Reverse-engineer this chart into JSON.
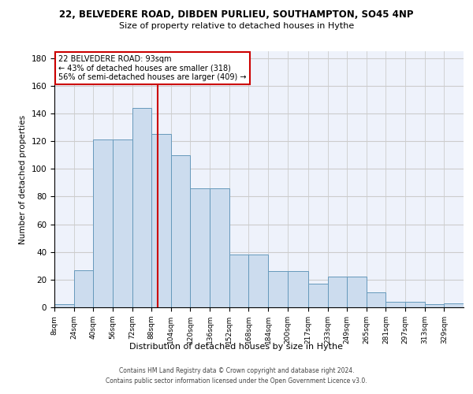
{
  "title1": "22, BELVEDERE ROAD, DIBDEN PURLIEU, SOUTHAMPTON, SO45 4NP",
  "title2": "Size of property relative to detached houses in Hythe",
  "xlabel": "Distribution of detached houses by size in Hythe",
  "ylabel": "Number of detached properties",
  "footer1": "Contains HM Land Registry data © Crown copyright and database right 2024.",
  "footer2": "Contains public sector information licensed under the Open Government Licence v3.0.",
  "annotation_line1": "22 BELVEDERE ROAD: 93sqm",
  "annotation_line2": "← 43% of detached houses are smaller (318)",
  "annotation_line3": "56% of semi-detached houses are larger (409) →",
  "property_size": 93,
  "bar_color": "#ccdcee",
  "bar_edge_color": "#6699bb",
  "vline_color": "#cc0000",
  "annotation_box_edge": "#cc0000",
  "grid_color": "#cccccc",
  "background_color": "#eef2fb",
  "bin_edges": [
    8,
    24,
    40,
    56,
    72,
    88,
    104,
    120,
    136,
    152,
    168,
    184,
    200,
    217,
    233,
    249,
    265,
    281,
    297,
    313,
    329,
    345
  ],
  "tick_labels": [
    "8sqm",
    "24sqm",
    "40sqm",
    "56sqm",
    "72sqm",
    "88sqm",
    "104sqm",
    "120sqm",
    "136sqm",
    "152sqm",
    "168sqm",
    "184sqm",
    "200sqm",
    "217sqm",
    "233sqm",
    "249sqm",
    "265sqm",
    "281sqm",
    "297sqm",
    "313sqm",
    "329sqm"
  ],
  "counts": [
    2,
    27,
    121,
    121,
    144,
    125,
    110,
    86,
    86,
    38,
    38,
    26,
    26,
    17,
    22,
    22,
    11,
    4,
    4,
    2,
    3
  ],
  "ylim": [
    0,
    185
  ],
  "yticks": [
    0,
    20,
    40,
    60,
    80,
    100,
    120,
    140,
    160,
    180
  ]
}
